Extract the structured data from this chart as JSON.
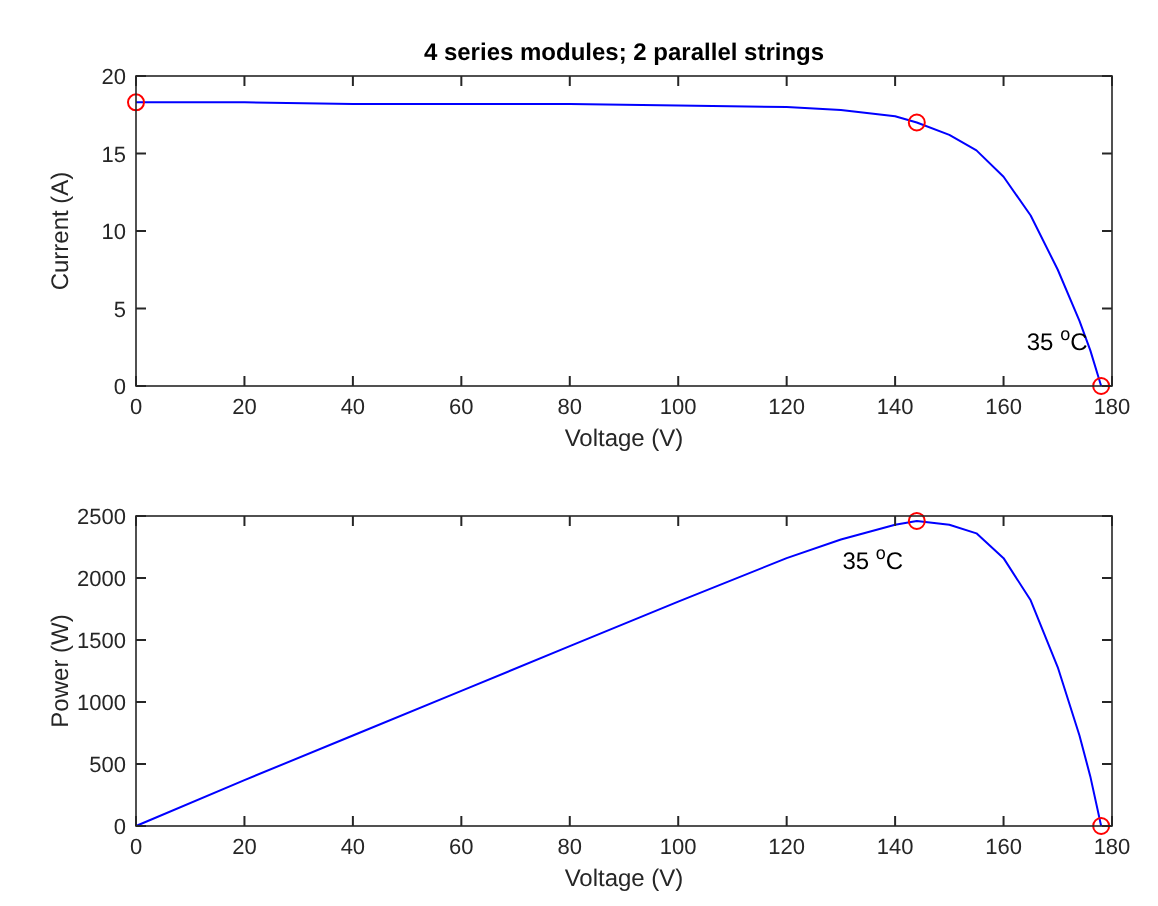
{
  "chart_data": [
    {
      "type": "line",
      "title": "4 series modules; 2 parallel strings",
      "xlabel": "Voltage (V)",
      "ylabel": "Current (A)",
      "xlim": [
        0,
        180
      ],
      "xticks": [
        0,
        20,
        40,
        60,
        80,
        100,
        120,
        140,
        160,
        180
      ],
      "ylim": [
        0,
        20
      ],
      "yticks": [
        0,
        5,
        10,
        15,
        20
      ],
      "grid": false,
      "series": [
        {
          "type": "line",
          "color": "#0000ff",
          "marker": "none",
          "x": [
            0,
            20,
            40,
            60,
            80,
            100,
            120,
            130,
            140,
            144,
            150,
            155,
            160,
            165,
            170,
            174,
            176,
            178
          ],
          "values": [
            18.3,
            18.3,
            18.2,
            18.2,
            18.2,
            18.1,
            18.0,
            17.8,
            17.4,
            17.0,
            16.2,
            15.2,
            13.5,
            11,
            7.5,
            4.2,
            2.3,
            0
          ]
        },
        {
          "type": "scatter",
          "color": "#ff0000",
          "marker": "circle",
          "x": [
            0,
            144,
            178
          ],
          "values": [
            18.3,
            17.0,
            0
          ]
        }
      ],
      "annotations": [
        {
          "text": "35 $^{o}$C",
          "x": 178,
          "y": 0
        }
      ]
    },
    {
      "type": "line",
      "xlabel": "Voltage (V)",
      "ylabel": "Power (W)",
      "xlim": [
        0,
        180
      ],
      "xticks": [
        0,
        20,
        40,
        60,
        80,
        100,
        120,
        140,
        160,
        180
      ],
      "ylim": [
        0,
        2500
      ],
      "yticks": [
        0,
        500,
        1000,
        1500,
        2000,
        2500
      ],
      "grid": false,
      "series": [
        {
          "type": "line",
          "color": "#0000ff",
          "marker": "none",
          "x": [
            0,
            20,
            40,
            60,
            80,
            100,
            120,
            130,
            140,
            144,
            150,
            155,
            160,
            165,
            170,
            174,
            176,
            178
          ],
          "values": [
            0,
            370,
            730,
            1090,
            1450,
            1810,
            2160,
            2310,
            2430,
            2460,
            2430,
            2360,
            2160,
            1820,
            1280,
            730,
            400,
            0
          ]
        },
        {
          "type": "scatter",
          "color": "#ff0000",
          "marker": "circle",
          "x": [
            144,
            178
          ],
          "values": [
            2460,
            0
          ]
        }
      ],
      "annotations": [
        {
          "text": "35 $^{o}$C",
          "x": 144,
          "y": 2460
        }
      ]
    }
  ]
}
